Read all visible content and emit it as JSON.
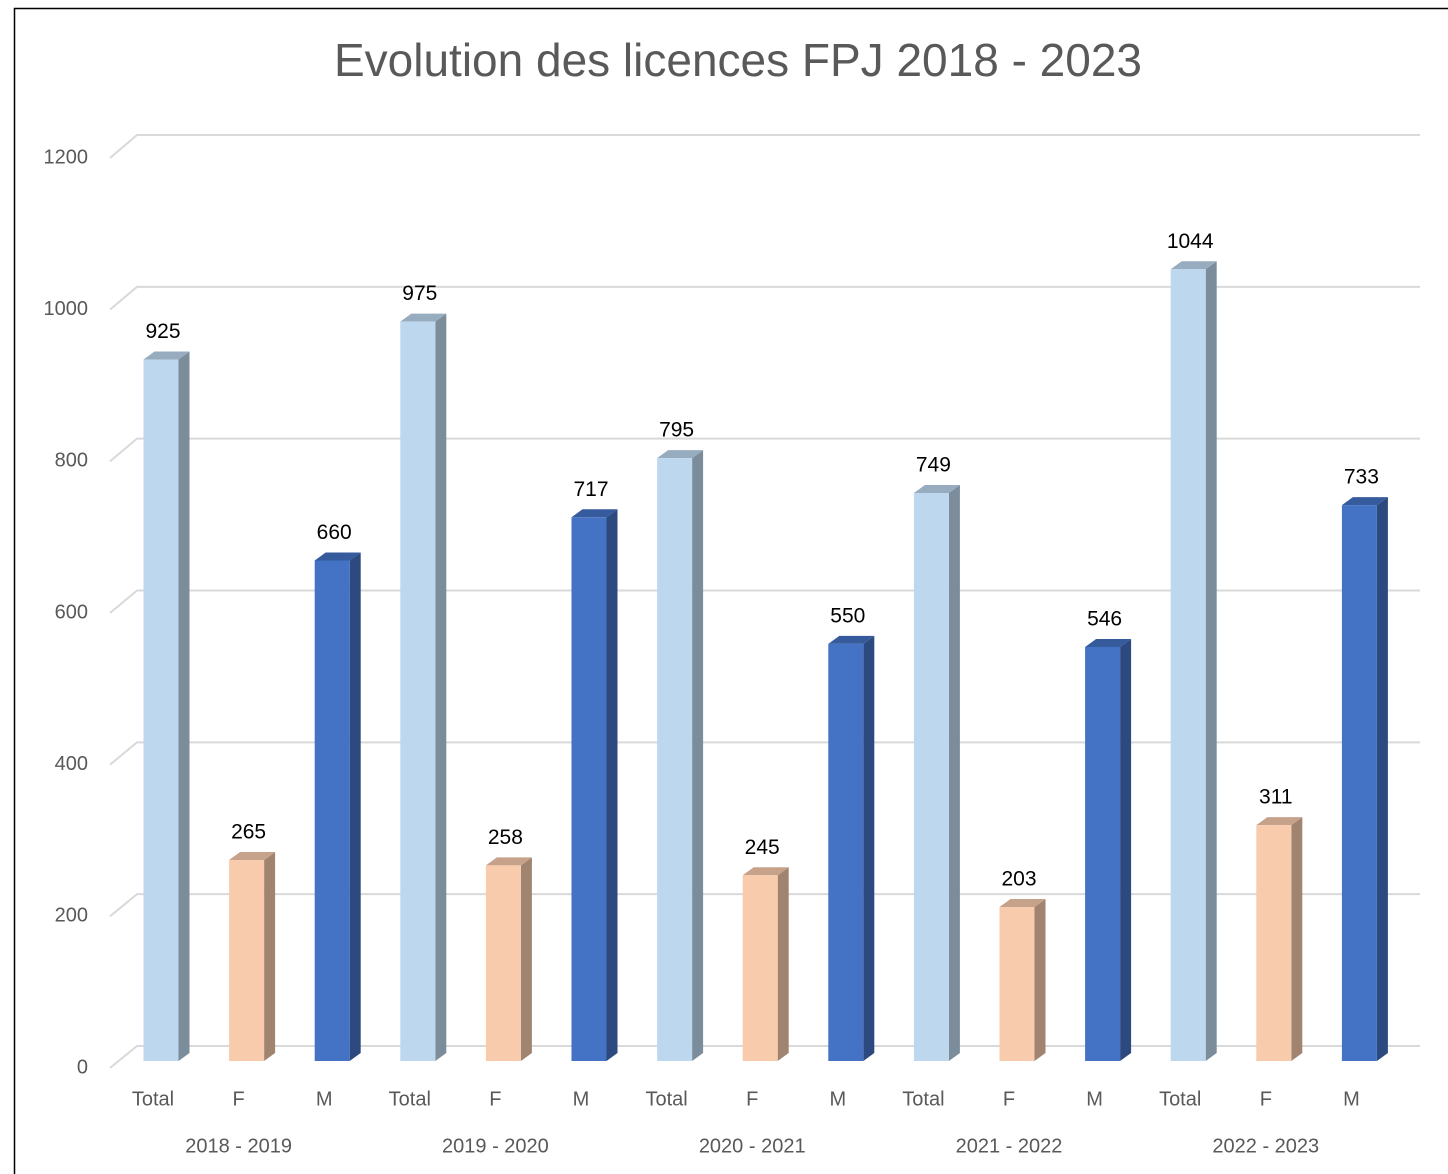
{
  "chart_data": {
    "type": "bar3d",
    "title": "Evolution des licences FPJ 2018 - 2023",
    "categories": [
      "2018 - 2019",
      "2019 - 2020",
      "2020 - 2021",
      "2021 - 2022",
      "2022 - 2023"
    ],
    "series": [
      {
        "name": "Total",
        "color": "#bdd7ee",
        "values": [
          925,
          975,
          795,
          749,
          1044
        ]
      },
      {
        "name": "F",
        "color": "#f8cbad",
        "values": [
          265,
          258,
          245,
          203,
          311
        ]
      },
      {
        "name": "M",
        "color": "#4472c4",
        "values": [
          660,
          717,
          550,
          546,
          733
        ]
      }
    ],
    "ylim": [
      0,
      1200
    ],
    "yticks": [
      0,
      200,
      400,
      600,
      800,
      1000,
      1200
    ],
    "grid": true
  }
}
